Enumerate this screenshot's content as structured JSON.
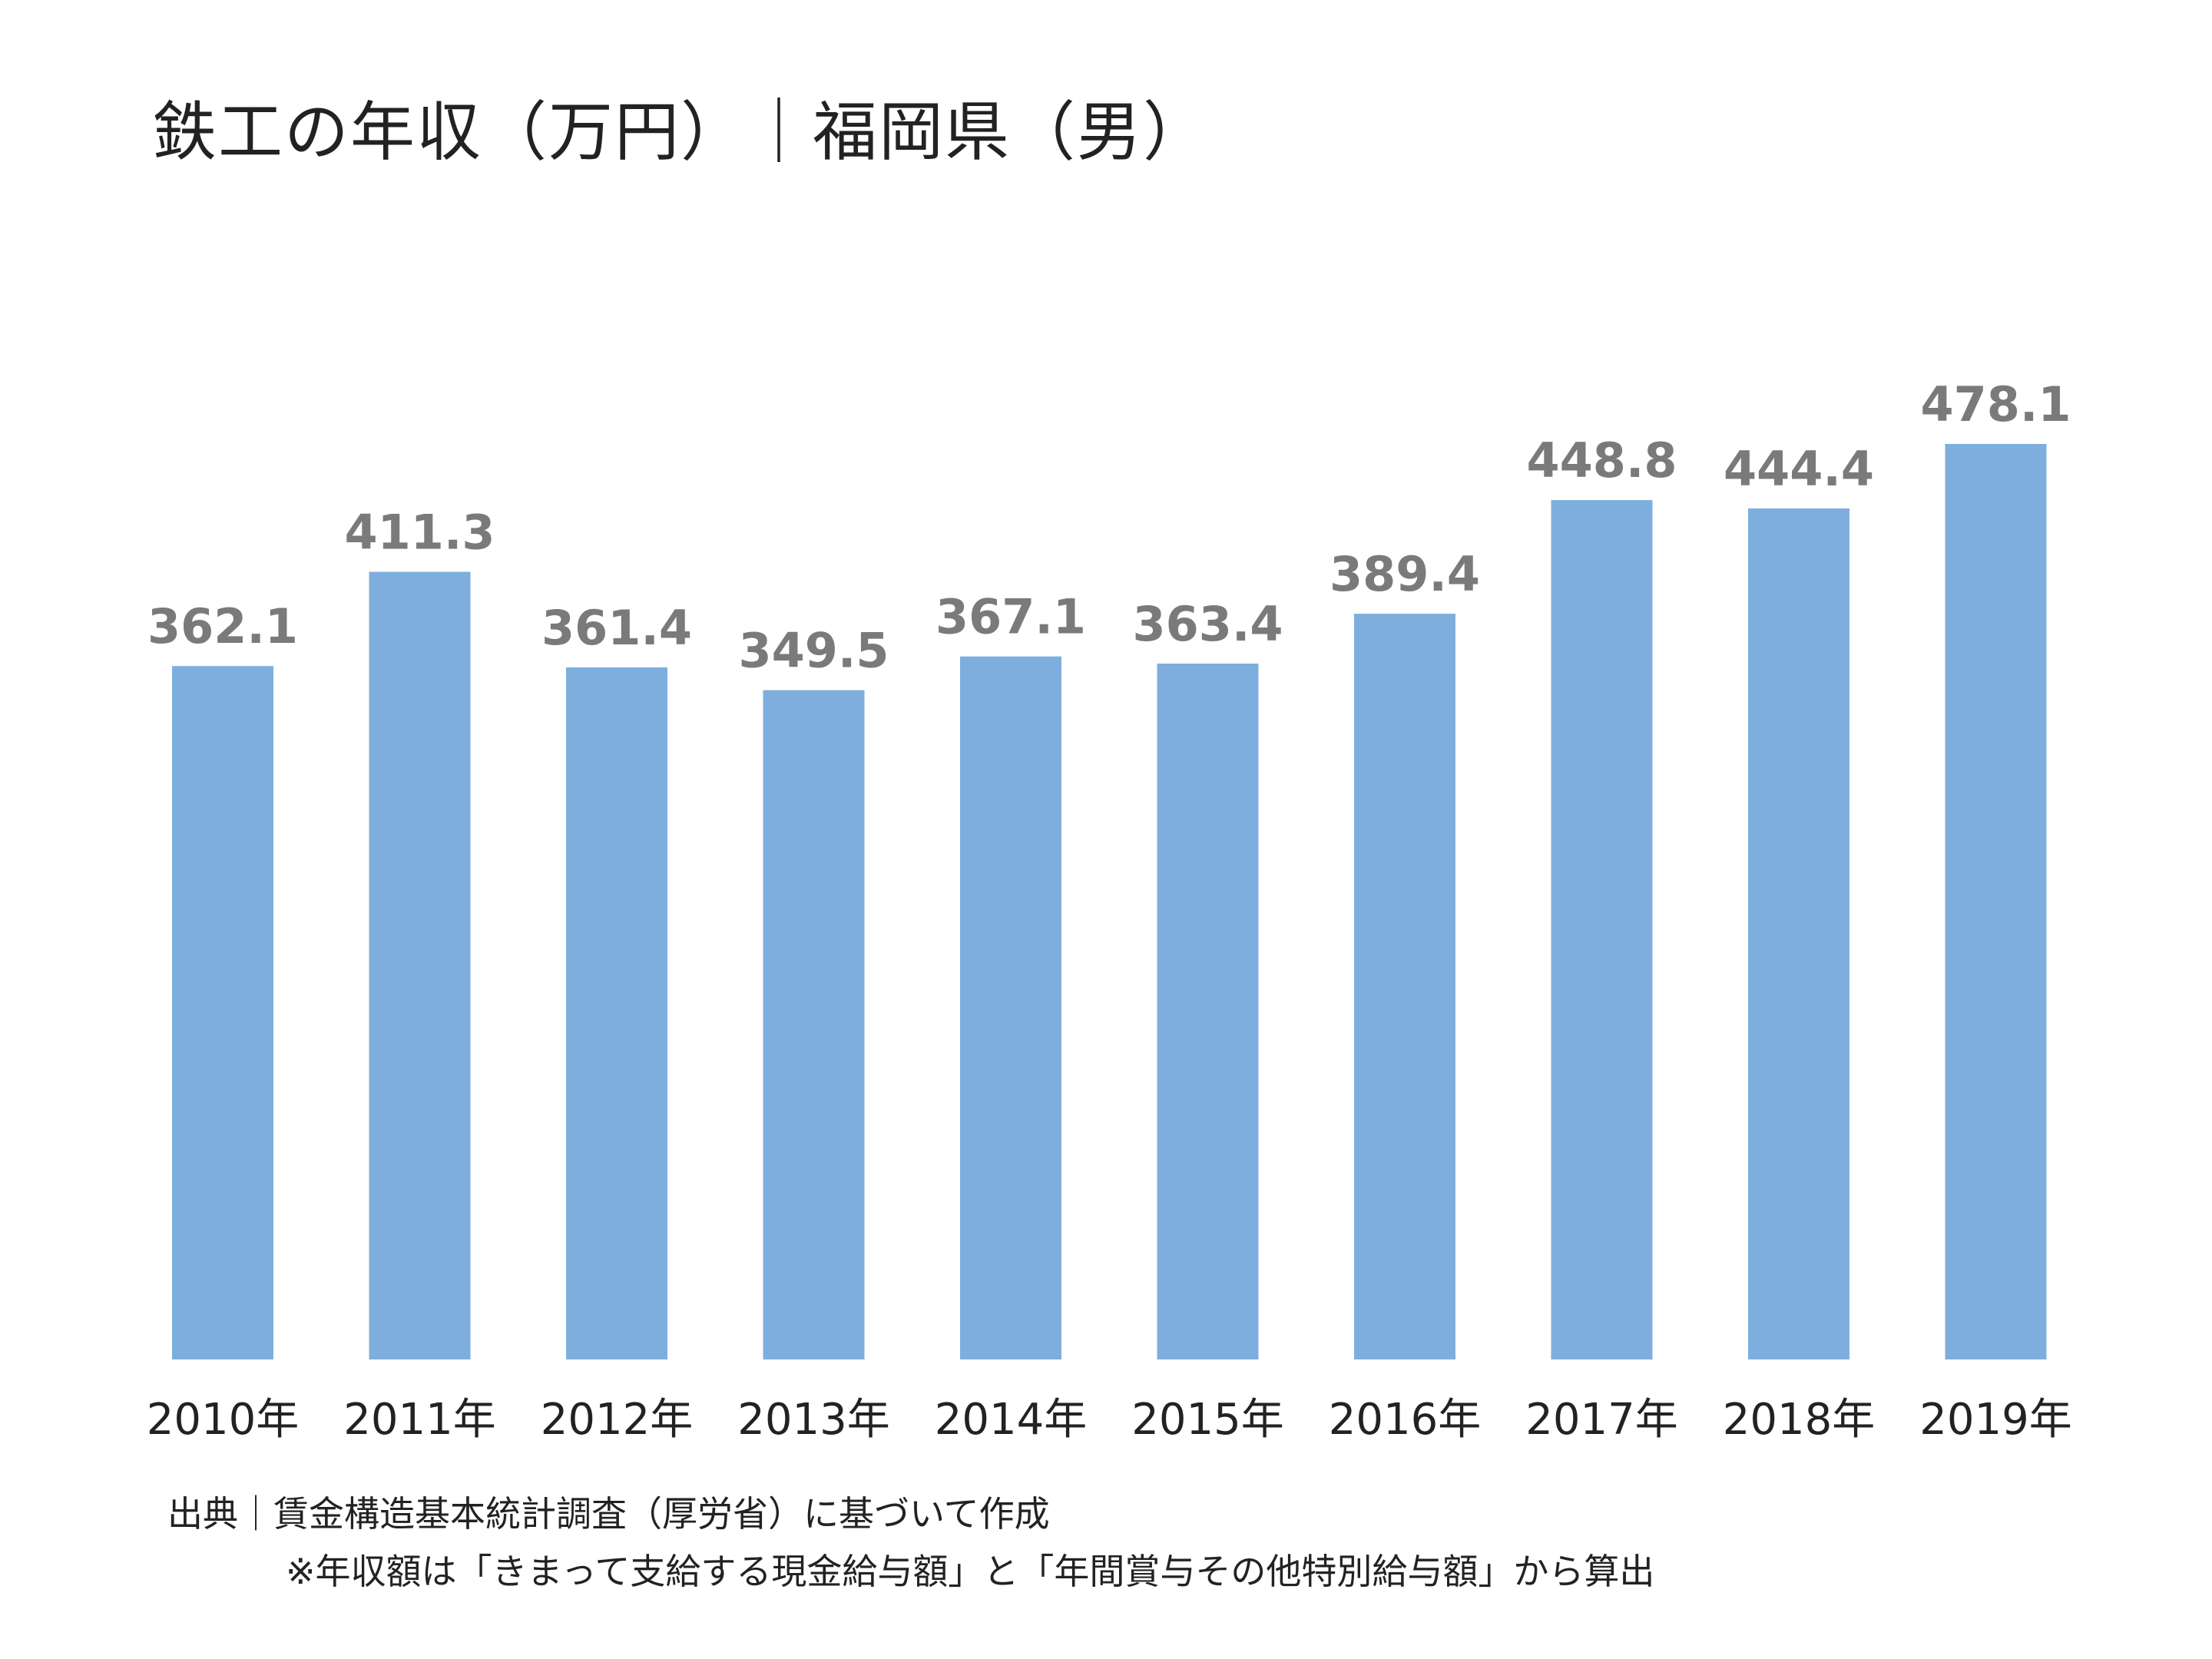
{
  "title": "鉄工の年収（万円）｜福岡県（男）",
  "source": "出典｜賃金構造基本統計調査（厚労省）に基づいて作成",
  "note": "※年収額は「きまって支給する現金給与額」と「年間賞与その他特別給与額」から算出",
  "colors": {
    "bar": "#7eaedd",
    "value_label": "#7a7a7a",
    "axis_label": "#222222"
  },
  "chart_data": {
    "type": "bar",
    "categories": [
      "2010年",
      "2011年",
      "2012年",
      "2013年",
      "2014年",
      "2015年",
      "2016年",
      "2017年",
      "2018年",
      "2019年"
    ],
    "values": [
      362.1,
      411.3,
      361.4,
      349.5,
      367.1,
      363.4,
      389.4,
      448.8,
      444.4,
      478.1
    ],
    "value_labels": [
      "362.1",
      "411.3",
      "361.4",
      "349.5",
      "367.1",
      "363.4",
      "389.4",
      "448.8",
      "444.4",
      "478.1"
    ],
    "title": "鉄工の年収（万円）｜福岡県（男）",
    "xlabel": "",
    "ylabel": "",
    "ylim": [
      0,
      478.1
    ],
    "grid": false,
    "legend": "none"
  }
}
